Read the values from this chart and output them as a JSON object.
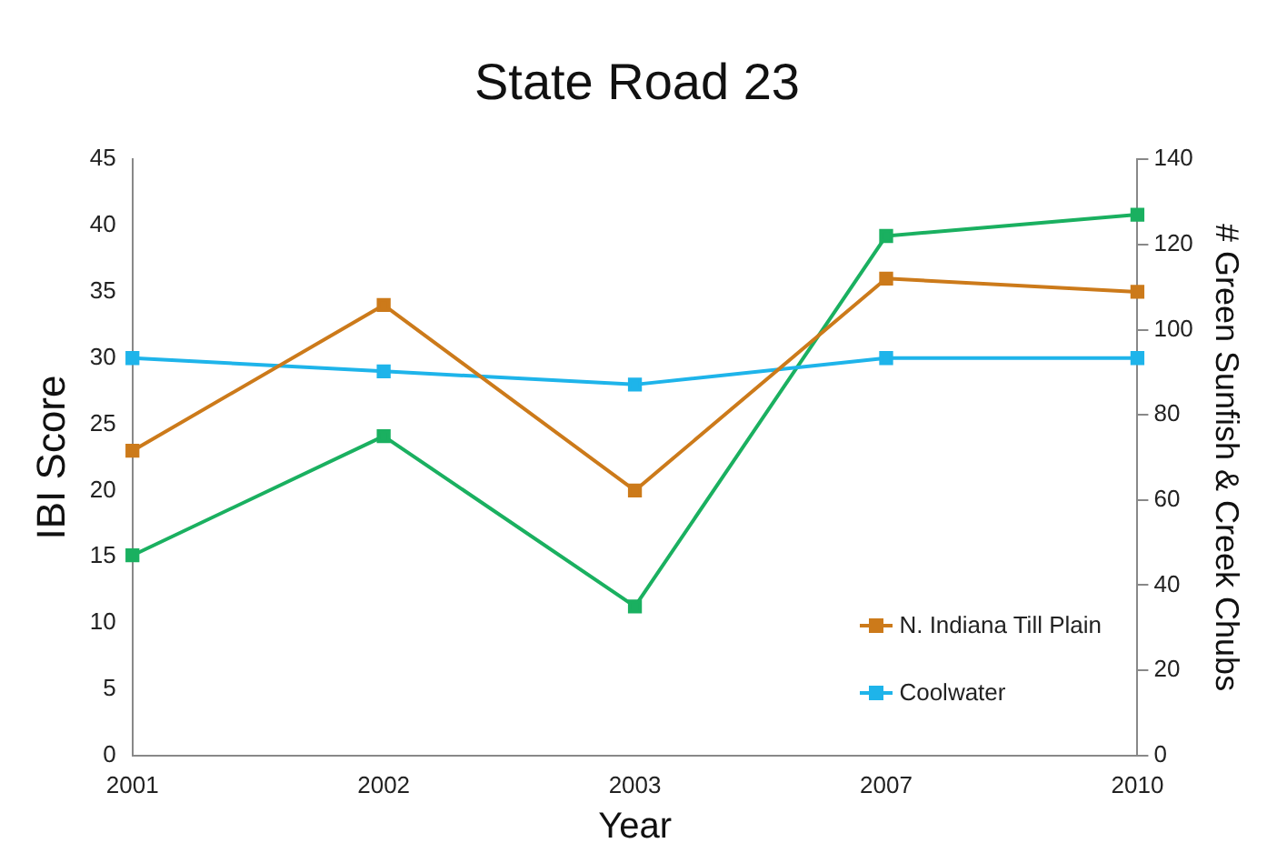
{
  "chart_data": {
    "type": "line",
    "title": "State Road 23",
    "xlabel": "Year",
    "ylabel": "IBI Score",
    "y2label": "# Green Sunfish & Creek Chubs",
    "categories": [
      "2001",
      "2002",
      "2003",
      "2007",
      "2010"
    ],
    "series": [
      {
        "name": "N. Indiana Till Plain",
        "color": "#cc7a1a",
        "values": [
          23,
          34,
          20,
          36,
          35
        ]
      },
      {
        "name": "Coolwater",
        "color": "#1eb4ea",
        "values": [
          30,
          29,
          28,
          30,
          30
        ]
      },
      {
        "color": "#1ab060",
        "axis": "y2",
        "values": [
          47,
          75,
          35,
          122,
          127
        ]
      }
    ],
    "ylim": [
      0,
      45
    ],
    "yticks": [
      0,
      5,
      10,
      15,
      20,
      25,
      30,
      35,
      40,
      45
    ],
    "y2lim": [
      0,
      140
    ],
    "y2ticks": [
      0,
      20,
      40,
      60,
      80,
      100,
      120,
      140
    ],
    "grid": false,
    "legend": "bottom right",
    "marker": "square",
    "line_style": "solid"
  }
}
